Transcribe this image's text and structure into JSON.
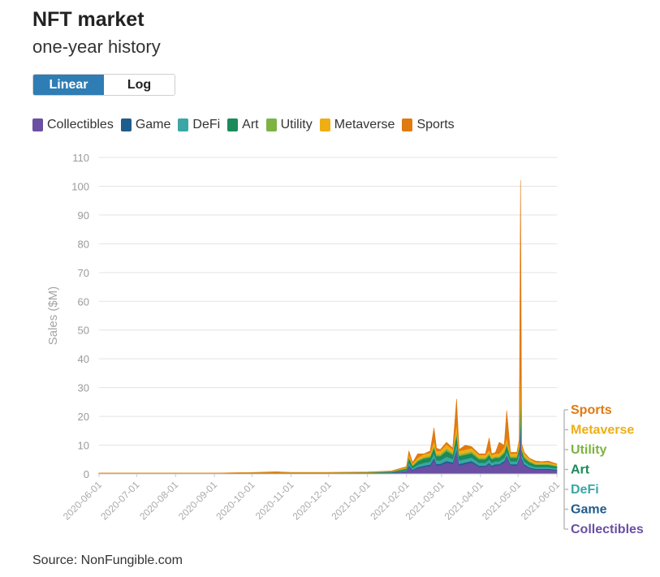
{
  "header": {
    "title": "NFT market",
    "subtitle": "one-year history"
  },
  "scale_toggle": {
    "linear_label": "Linear",
    "log_label": "Log",
    "selected": "Linear"
  },
  "legend": [
    {
      "label": "Collectibles",
      "color": "#6a4fa3"
    },
    {
      "label": "Game",
      "color": "#1f5d8c"
    },
    {
      "label": "DeFi",
      "color": "#3aa7a6"
    },
    {
      "label": "Art",
      "color": "#1c8a5a"
    },
    {
      "label": "Utility",
      "color": "#7cb342"
    },
    {
      "label": "Metaverse",
      "color": "#efae14"
    },
    {
      "label": "Sports",
      "color": "#e07a12"
    }
  ],
  "source": "Source: NonFungible.com",
  "chart_data": {
    "type": "area",
    "stacked": true,
    "title": "NFT market",
    "subtitle": "one-year history",
    "ylabel": "Sales ($M)",
    "xlabel": "",
    "ylim": [
      0,
      110
    ],
    "y_ticks": [
      0,
      10,
      20,
      30,
      40,
      50,
      60,
      70,
      80,
      90,
      100,
      110
    ],
    "x_ticks": [
      "2020-06-01",
      "2020-07-01",
      "2020-08-01",
      "2020-09-01",
      "2020-10-01",
      "2020-11-01",
      "2020-12-01",
      "2021-01-01",
      "2021-02-01",
      "2021-03-01",
      "2021-04-01",
      "2021-05-01",
      "2021-06-01"
    ],
    "grid": "horizontal",
    "legend_position": "top",
    "end_labels": [
      "Sports",
      "Metaverse",
      "Utility",
      "Art",
      "DeFi",
      "Game",
      "Collectibles"
    ],
    "x": [
      "2020-06-01",
      "2020-07-01",
      "2020-08-01",
      "2020-09-01",
      "2020-10-01",
      "2020-10-20",
      "2020-11-01",
      "2020-12-01",
      "2021-01-01",
      "2021-01-20",
      "2021-02-01",
      "2021-02-03",
      "2021-02-06",
      "2021-02-10",
      "2021-02-15",
      "2021-02-20",
      "2021-02-23",
      "2021-02-25",
      "2021-02-28",
      "2021-03-05",
      "2021-03-10",
      "2021-03-13",
      "2021-03-15",
      "2021-03-20",
      "2021-03-25",
      "2021-03-31",
      "2021-04-05",
      "2021-04-08",
      "2021-04-10",
      "2021-04-13",
      "2021-04-16",
      "2021-04-20",
      "2021-04-22",
      "2021-04-25",
      "2021-04-30",
      "2021-05-02",
      "2021-05-03",
      "2021-05-04",
      "2021-05-06",
      "2021-05-10",
      "2021-05-15",
      "2021-05-20",
      "2021-05-25",
      "2021-06-01"
    ],
    "series": [
      {
        "name": "Collectibles",
        "color": "#6a4fa3",
        "values": [
          0.1,
          0.1,
          0.1,
          0.1,
          0.2,
          0.2,
          0.2,
          0.2,
          0.3,
          0.4,
          0.8,
          2.5,
          1.2,
          2.0,
          2.5,
          2.8,
          5.0,
          3.0,
          3.0,
          4.0,
          3.5,
          8.0,
          3.0,
          3.5,
          4.0,
          2.5,
          2.5,
          3.5,
          2.5,
          3.0,
          3.0,
          4.0,
          6.0,
          3.0,
          3.0,
          5.0,
          18.0,
          5.0,
          3.0,
          2.0,
          1.5,
          1.5,
          1.5,
          1.2
        ]
      },
      {
        "name": "Game",
        "color": "#1f5d8c",
        "values": [
          0.05,
          0.05,
          0.05,
          0.05,
          0.05,
          0.05,
          0.05,
          0.05,
          0.05,
          0.1,
          0.2,
          0.5,
          0.3,
          0.4,
          0.4,
          0.5,
          0.6,
          0.5,
          0.5,
          0.5,
          0.5,
          0.6,
          0.5,
          0.5,
          0.5,
          0.4,
          0.4,
          0.4,
          0.4,
          0.4,
          0.4,
          0.5,
          0.5,
          0.4,
          0.4,
          0.5,
          1.0,
          0.5,
          0.4,
          0.3,
          0.3,
          0.3,
          0.3,
          0.3
        ]
      },
      {
        "name": "DeFi",
        "color": "#3aa7a6",
        "values": [
          0.05,
          0.05,
          0.05,
          0.05,
          0.05,
          0.05,
          0.05,
          0.05,
          0.05,
          0.1,
          0.3,
          1.0,
          0.5,
          0.8,
          1.0,
          1.0,
          1.5,
          1.2,
          1.2,
          1.5,
          1.2,
          2.0,
          1.2,
          1.2,
          1.2,
          1.0,
          1.0,
          1.2,
          1.0,
          1.0,
          1.0,
          1.2,
          1.5,
          1.0,
          1.0,
          1.5,
          3.0,
          1.2,
          1.0,
          0.8,
          0.6,
          0.6,
          0.6,
          0.5
        ]
      },
      {
        "name": "Art",
        "color": "#1c8a5a",
        "values": [
          0.05,
          0.05,
          0.05,
          0.05,
          0.1,
          0.1,
          0.1,
          0.1,
          0.1,
          0.2,
          0.5,
          1.5,
          0.8,
          1.2,
          1.5,
          1.5,
          2.0,
          1.5,
          1.5,
          2.0,
          1.5,
          3.0,
          1.5,
          1.5,
          1.5,
          1.2,
          1.2,
          1.5,
          1.2,
          1.2,
          1.2,
          1.5,
          2.0,
          1.2,
          1.2,
          2.0,
          5.0,
          1.5,
          1.2,
          1.0,
          0.8,
          0.8,
          0.8,
          0.6
        ]
      },
      {
        "name": "Utility",
        "color": "#7cb342",
        "values": [
          0.02,
          0.02,
          0.02,
          0.02,
          0.02,
          0.02,
          0.02,
          0.02,
          0.02,
          0.05,
          0.2,
          0.5,
          0.3,
          0.4,
          0.5,
          0.5,
          0.8,
          0.6,
          0.6,
          0.8,
          0.6,
          1.0,
          0.6,
          0.6,
          0.6,
          0.5,
          0.5,
          0.6,
          0.5,
          0.5,
          0.5,
          0.6,
          0.8,
          0.5,
          0.5,
          0.8,
          2.0,
          0.6,
          0.5,
          0.4,
          0.3,
          0.3,
          0.3,
          0.3
        ]
      },
      {
        "name": "Metaverse",
        "color": "#efae14",
        "values": [
          0.02,
          0.02,
          0.02,
          0.02,
          0.05,
          0.05,
          0.05,
          0.05,
          0.05,
          0.1,
          0.3,
          1.0,
          0.5,
          0.8,
          1.0,
          1.0,
          1.5,
          1.2,
          1.2,
          1.5,
          1.2,
          3.0,
          1.2,
          1.2,
          1.2,
          1.0,
          1.0,
          1.2,
          1.0,
          1.0,
          1.0,
          1.5,
          2.0,
          1.0,
          1.0,
          2.0,
          10.0,
          1.5,
          1.0,
          0.8,
          0.6,
          0.6,
          0.6,
          0.5
        ]
      },
      {
        "name": "Sports",
        "color": "#e07a12",
        "values": [
          0.01,
          0.01,
          0.01,
          0.01,
          0.05,
          0.3,
          0.1,
          0.1,
          0.1,
          0.1,
          0.2,
          1.0,
          0.4,
          1.4,
          0.1,
          0.7,
          4.6,
          1.0,
          0.5,
          0.7,
          0.5,
          8.4,
          0.5,
          1.5,
          0.5,
          0.4,
          0.4,
          4.1,
          0.4,
          0.4,
          3.9,
          0.7,
          9.2,
          0.4,
          0.4,
          0.2,
          63.0,
          0.2,
          0.4,
          0.2,
          0.4,
          0.2,
          0.4,
          0.1
        ]
      }
    ]
  }
}
